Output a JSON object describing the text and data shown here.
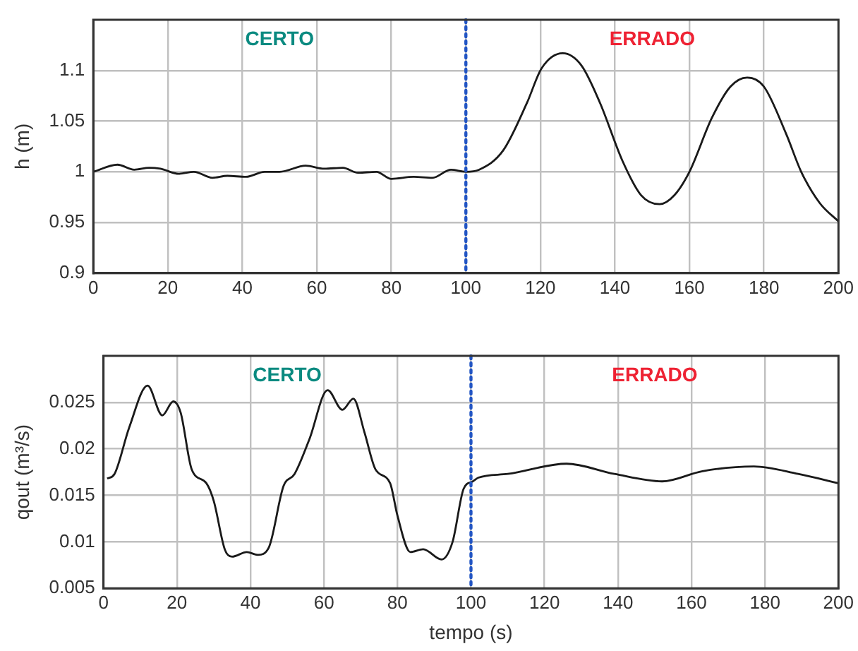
{
  "chart_data": [
    {
      "type": "line",
      "ylabel": "h (m)",
      "xlim": [
        0,
        200
      ],
      "xticks": [
        0,
        20,
        40,
        60,
        80,
        100,
        120,
        140,
        160,
        180,
        200
      ],
      "ylim": [
        0.9,
        1.15
      ],
      "yticks": [
        0.9,
        0.95,
        1,
        1.05,
        1.1
      ],
      "grid": true,
      "legend": false,
      "marker": "none",
      "line_style": "solid",
      "series": [
        {
          "color": "#1a1a1a",
          "x": [
            0,
            6.5,
            11,
            15,
            18,
            23,
            27,
            32,
            36,
            41,
            46,
            50,
            57,
            62,
            67,
            71,
            76,
            80,
            86,
            91,
            96,
            100,
            103.5,
            110,
            116.4,
            120.3,
            126,
            131,
            136,
            142,
            147,
            152,
            156,
            160,
            166,
            171,
            175.5,
            180,
            186,
            190,
            195,
            200
          ],
          "values": [
            1.0,
            1.007,
            1.002,
            1.004,
            1.003,
            0.998,
            1.0,
            0.994,
            0.996,
            0.995,
            1.0,
            1.0,
            1.006,
            1.003,
            1.004,
            0.999,
            1.0,
            0.993,
            0.995,
            0.994,
            1.002,
            1.0,
            1.002,
            1.021,
            1.068,
            1.102,
            1.117,
            1.105,
            1.068,
            1.011,
            0.977,
            0.968,
            0.977,
            1.0,
            1.053,
            1.084,
            1.093,
            1.084,
            1.037,
            1.0,
            0.969,
            0.951
          ]
        }
      ],
      "ref_lines": [
        {
          "axis": "x",
          "value": 100,
          "color": "#2255c4",
          "line_style": "dotted"
        }
      ],
      "annotations": [
        "CERTO",
        "ERRADO"
      ]
    },
    {
      "type": "line",
      "xlabel": "tempo (s)",
      "ylabel": "qout (m³/s)",
      "xlim": [
        0,
        200
      ],
      "xticks": [
        0,
        20,
        40,
        60,
        80,
        100,
        120,
        140,
        160,
        180,
        200
      ],
      "ylim": [
        0.005,
        0.03
      ],
      "yticks": [
        0.005,
        0.01,
        0.015,
        0.02,
        0.025
      ],
      "grid": true,
      "legend": false,
      "marker": "none",
      "line_style": "solid",
      "series": [
        {
          "color": "#1a1a1a",
          "x": [
            1,
            3,
            7,
            12,
            16,
            19,
            21,
            24,
            28,
            30,
            33,
            35,
            39,
            42,
            45,
            49,
            52,
            56,
            61,
            65,
            68,
            71,
            74,
            78,
            80,
            83.5,
            87,
            92,
            95,
            98,
            100.5,
            102,
            110,
            126,
            139,
            152,
            163,
            177,
            189,
            200
          ],
          "values": [
            0.0168,
            0.0173,
            0.0223,
            0.0268,
            0.0236,
            0.0251,
            0.0239,
            0.0178,
            0.0163,
            0.0144,
            0.0092,
            0.0084,
            0.0089,
            0.0086,
            0.0094,
            0.016,
            0.0173,
            0.021,
            0.0263,
            0.0242,
            0.0254,
            0.0218,
            0.0178,
            0.0163,
            0.0128,
            0.0089,
            0.0092,
            0.0081,
            0.01,
            0.0157,
            0.0165,
            0.0169,
            0.0173,
            0.0184,
            0.0173,
            0.0165,
            0.0176,
            0.0181,
            0.0173,
            0.0163
          ]
        }
      ],
      "ref_lines": [
        {
          "axis": "x",
          "value": 100,
          "color": "#2255c4",
          "line_style": "dotted"
        }
      ],
      "annotations": [
        "CERTO",
        "ERRADO"
      ]
    }
  ]
}
